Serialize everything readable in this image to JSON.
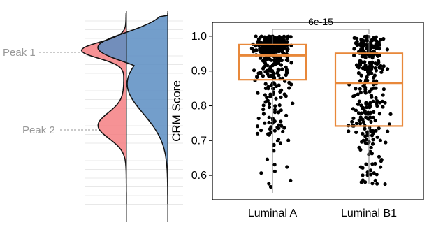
{
  "chart_data": [
    {
      "type": "violin",
      "description": "Split density plot with two mirrored distributions",
      "series": [
        {
          "name": "",
          "color": "#F4777A"
        },
        {
          "name": "",
          "color": "#5B8DC2"
        }
      ],
      "annotations": [
        {
          "text": "Peak 1"
        },
        {
          "text": "Peak 2"
        }
      ]
    },
    {
      "type": "box",
      "categories": [
        "Luminal A",
        "Luminal B1"
      ],
      "ylabel": "CRM Score",
      "ylim": [
        0.53,
        1.04
      ],
      "yticks": [
        "0.6",
        "0.7",
        "0.8",
        "0.9",
        "1.0"
      ],
      "ytick_values": [
        0.6,
        0.7,
        0.8,
        0.9,
        1.0
      ],
      "box_color": "#E8883A",
      "point_color": "#000000",
      "boxes": [
        {
          "category": "Luminal A",
          "q1": 0.875,
          "median": 0.945,
          "q3": 0.976,
          "min": 0.55,
          "max": 1.0
        },
        {
          "category": "Luminal B1",
          "q1": 0.742,
          "median": 0.866,
          "q3": 0.951,
          "min": 0.575,
          "max": 1.0
        }
      ],
      "significance": {
        "label": "6e-15",
        "between": [
          "Luminal A",
          "Luminal B1"
        ]
      },
      "n_points_approx": [
        400,
        300
      ]
    }
  ]
}
